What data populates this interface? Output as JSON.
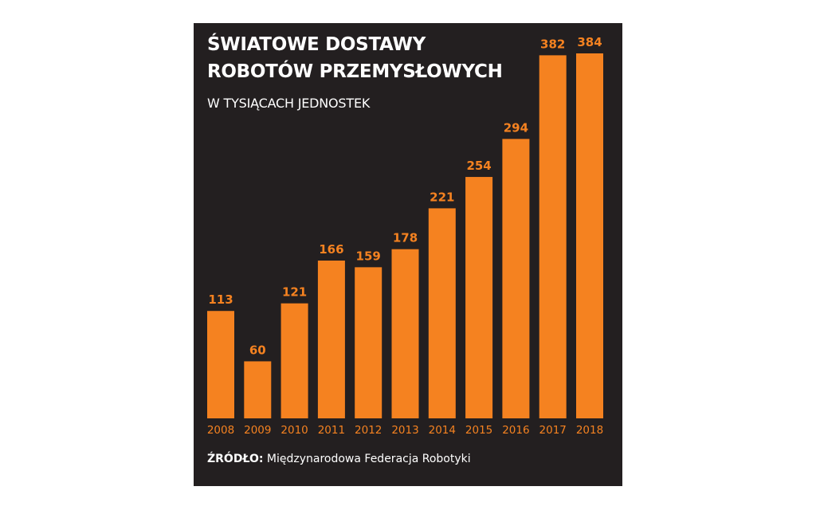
{
  "chart_data": {
    "type": "bar",
    "title": [
      "ŚWIATOWE DOSTAWY",
      "ROBOTÓW PRZEMYSŁOWYCH"
    ],
    "subtitle": "W TYSIĄCACH JEDNOSTEK",
    "categories": [
      "2008",
      "2009",
      "2010",
      "2011",
      "2012",
      "2013",
      "2014",
      "2015",
      "2016",
      "2017",
      "2018"
    ],
    "values": [
      113,
      60,
      121,
      166,
      159,
      178,
      221,
      254,
      294,
      382,
      384
    ],
    "value_labels": true,
    "grid": false,
    "legend": "none",
    "ylim": [
      0,
      384
    ]
  },
  "source": {
    "label": "ŹRÓDŁO:",
    "text": "Międzynarodowa Federacja Robotyki"
  },
  "colors": {
    "background": "#231f20",
    "bar": "#f58220",
    "title_text": "#ffffff",
    "label_text": "#f58220"
  }
}
